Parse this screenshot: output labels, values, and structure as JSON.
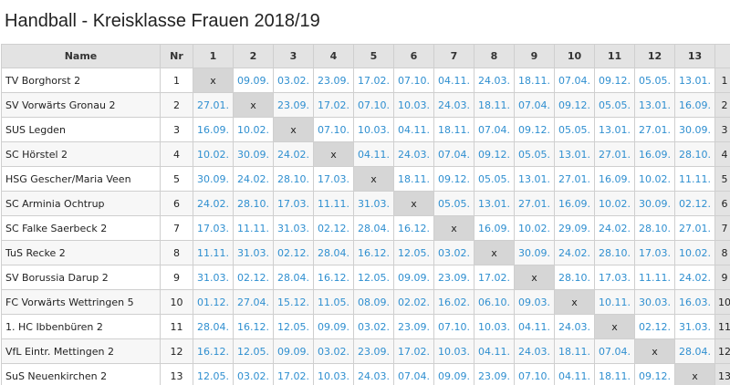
{
  "title": "Handball - Kreisklasse Frauen 2018/19",
  "header": {
    "name": "Name",
    "nr": "Nr",
    "columns": [
      "1",
      "2",
      "3",
      "4",
      "5",
      "6",
      "7",
      "8",
      "9",
      "10",
      "11",
      "12",
      "13"
    ]
  },
  "self_mark": "x",
  "rows": [
    {
      "nr": "1",
      "team": "TV Borghorst 2",
      "cells": [
        "x",
        "09.09.",
        "03.02.",
        "23.09.",
        "17.02.",
        "07.10.",
        "04.11.",
        "24.03.",
        "18.11.",
        "07.04.",
        "09.12.",
        "05.05.",
        "13.01."
      ]
    },
    {
      "nr": "2",
      "team": "SV Vorwärts Gronau 2",
      "cells": [
        "27.01.",
        "x",
        "23.09.",
        "17.02.",
        "07.10.",
        "10.03.",
        "24.03.",
        "18.11.",
        "07.04.",
        "09.12.",
        "05.05.",
        "13.01.",
        "16.09."
      ]
    },
    {
      "nr": "3",
      "team": "SUS Legden",
      "cells": [
        "16.09.",
        "10.02.",
        "x",
        "07.10.",
        "10.03.",
        "04.11.",
        "18.11.",
        "07.04.",
        "09.12.",
        "05.05.",
        "13.01.",
        "27.01.",
        "30.09."
      ]
    },
    {
      "nr": "4",
      "team": "SC Hörstel 2",
      "cells": [
        "10.02.",
        "30.09.",
        "24.02.",
        "x",
        "04.11.",
        "24.03.",
        "07.04.",
        "09.12.",
        "05.05.",
        "13.01.",
        "27.01.",
        "16.09.",
        "28.10."
      ]
    },
    {
      "nr": "5",
      "team": "HSG Gescher/Maria Veen",
      "cells": [
        "30.09.",
        "24.02.",
        "28.10.",
        "17.03.",
        "x",
        "18.11.",
        "09.12.",
        "05.05.",
        "13.01.",
        "27.01.",
        "16.09.",
        "10.02.",
        "11.11."
      ]
    },
    {
      "nr": "6",
      "team": "SC Arminia Ochtrup",
      "cells": [
        "24.02.",
        "28.10.",
        "17.03.",
        "11.11.",
        "31.03.",
        "x",
        "05.05.",
        "13.01.",
        "27.01.",
        "16.09.",
        "10.02.",
        "30.09.",
        "02.12."
      ]
    },
    {
      "nr": "7",
      "team": "SC Falke Saerbeck 2",
      "cells": [
        "17.03.",
        "11.11.",
        "31.03.",
        "02.12.",
        "28.04.",
        "16.12.",
        "x",
        "16.09.",
        "10.02.",
        "29.09.",
        "24.02.",
        "28.10.",
        "27.01."
      ]
    },
    {
      "nr": "8",
      "team": "TuS Recke 2",
      "cells": [
        "11.11.",
        "31.03.",
        "02.12.",
        "28.04.",
        "16.12.",
        "12.05.",
        "03.02.",
        "x",
        "30.09.",
        "24.02.",
        "28.10.",
        "17.03.",
        "10.02."
      ]
    },
    {
      "nr": "9",
      "team": "SV Borussia Darup 2",
      "cells": [
        "31.03.",
        "02.12.",
        "28.04.",
        "16.12.",
        "12.05.",
        "09.09.",
        "23.09.",
        "17.02.",
        "x",
        "28.10.",
        "17.03.",
        "11.11.",
        "24.02."
      ]
    },
    {
      "nr": "10",
      "team": "FC Vorwärts Wettringen 5",
      "cells": [
        "01.12.",
        "27.04.",
        "15.12.",
        "11.05.",
        "08.09.",
        "02.02.",
        "16.02.",
        "06.10.",
        "09.03.",
        "x",
        "10.11.",
        "30.03.",
        "16.03."
      ]
    },
    {
      "nr": "11",
      "team": "1. HC Ibbenbüren 2",
      "cells": [
        "28.04.",
        "16.12.",
        "12.05.",
        "09.09.",
        "03.02.",
        "23.09.",
        "07.10.",
        "10.03.",
        "04.11.",
        "24.03.",
        "x",
        "02.12.",
        "31.03."
      ]
    },
    {
      "nr": "12",
      "team": "VfL Eintr. Mettingen 2",
      "cells": [
        "16.12.",
        "12.05.",
        "09.09.",
        "03.02.",
        "23.09.",
        "17.02.",
        "10.03.",
        "04.11.",
        "24.03.",
        "18.11.",
        "07.04.",
        "x",
        "28.04."
      ]
    },
    {
      "nr": "13",
      "team": "SuS Neuenkirchen 2",
      "cells": [
        "12.05.",
        "03.02.",
        "17.02.",
        "10.03.",
        "24.03.",
        "07.04.",
        "09.09.",
        "23.09.",
        "07.10.",
        "04.11.",
        "18.11.",
        "09.12.",
        "x"
      ]
    }
  ],
  "colors": {
    "date_text": "#2f8fd0",
    "header_bg": "#e3e3e3",
    "self_cell_bg": "#d6d6d6"
  }
}
